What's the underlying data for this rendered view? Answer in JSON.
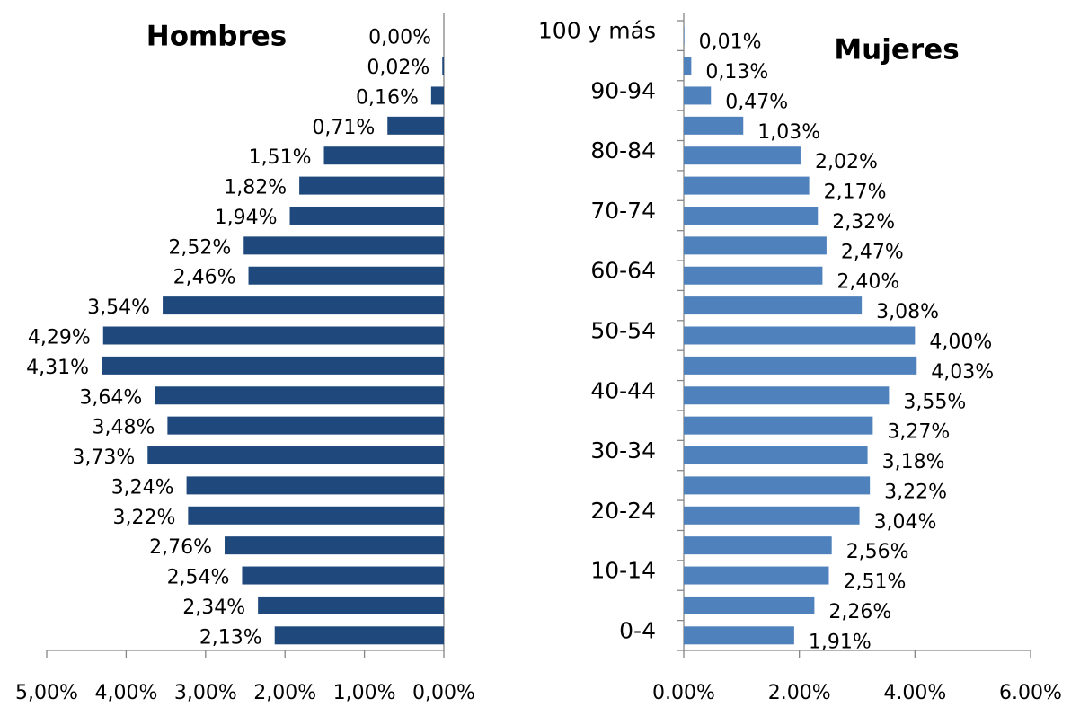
{
  "chart_data": [
    {
      "type": "bar",
      "orientation": "horizontal",
      "title": "Hombres",
      "color": "#1f497d",
      "values": [
        2.13,
        2.34,
        2.54,
        2.76,
        3.22,
        3.24,
        3.73,
        3.48,
        3.64,
        4.31,
        4.29,
        3.54,
        2.46,
        2.52,
        1.94,
        1.82,
        1.51,
        0.71,
        0.16,
        0.02,
        0.0
      ],
      "value_labels": [
        "2,13%",
        "2,34%",
        "2,54%",
        "2,76%",
        "3,22%",
        "3,24%",
        "3,73%",
        "3,48%",
        "3,64%",
        "4,31%",
        "4,29%",
        "3,54%",
        "2,46%",
        "2,52%",
        "1,94%",
        "1,82%",
        "1,51%",
        "0,71%",
        "0,16%",
        "0,02%",
        "0,00%"
      ],
      "xlim": [
        5,
        0
      ],
      "xticks": [
        {
          "value": 5,
          "label": "5,00%"
        },
        {
          "value": 4,
          "label": "4,00%"
        },
        {
          "value": 3,
          "label": "3,00%"
        },
        {
          "value": 2,
          "label": "2,00%"
        },
        {
          "value": 1,
          "label": "1,00%"
        },
        {
          "value": 0,
          "label": "0,00%"
        }
      ]
    },
    {
      "type": "bar",
      "orientation": "horizontal",
      "title": "Mujeres",
      "color": "#4f81bd",
      "categories": [
        "0-4",
        null,
        "10-14",
        null,
        "20-24",
        null,
        "30-34",
        null,
        "40-44",
        null,
        "50-54",
        null,
        "60-64",
        null,
        "70-74",
        null,
        "80-84",
        null,
        "90-94",
        null,
        "100 y más"
      ],
      "values": [
        1.91,
        2.26,
        2.51,
        2.56,
        3.04,
        3.22,
        3.18,
        3.27,
        3.55,
        4.03,
        4.0,
        3.08,
        2.4,
        2.47,
        2.32,
        2.17,
        2.02,
        1.03,
        0.47,
        0.13,
        0.01
      ],
      "value_labels": [
        "1,91%",
        "2,26%",
        "2,51%",
        "2,56%",
        "3,04%",
        "3,22%",
        "3,18%",
        "3,27%",
        "3,55%",
        "4,03%",
        "4,00%",
        "3,08%",
        "2,40%",
        "2,47%",
        "2,32%",
        "2,17%",
        "2,02%",
        "1,03%",
        "0,47%",
        "0,13%",
        "0,01%"
      ],
      "xlim": [
        0,
        6
      ],
      "xticks": [
        {
          "value": 0,
          "label": "0.00%"
        },
        {
          "value": 2,
          "label": "2.00%"
        },
        {
          "value": 4,
          "label": "4.00%"
        },
        {
          "value": 6,
          "label": "6.00%"
        }
      ]
    }
  ]
}
